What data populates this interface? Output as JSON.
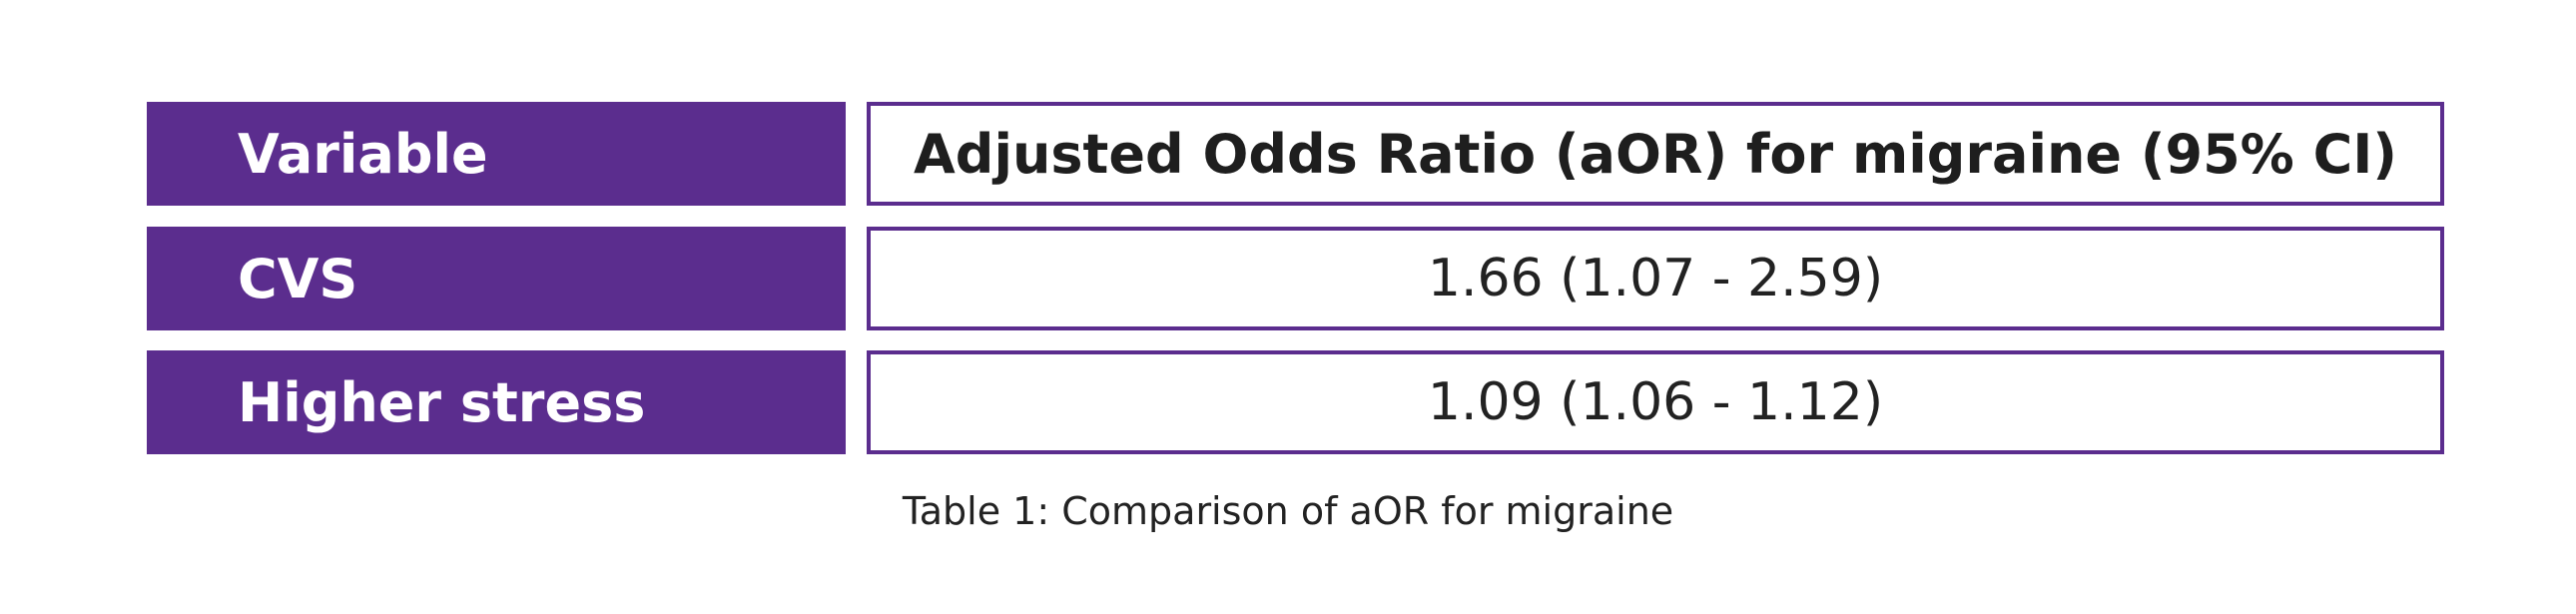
{
  "colors": {
    "accent": "#5b2d8e",
    "label_text": "#ffffff",
    "body_text": "#222222",
    "background": "#ffffff"
  },
  "table": {
    "header": {
      "variable": "Variable",
      "value": "Adjusted Odds Ratio (aOR) for migraine (95% CI)"
    },
    "rows": [
      {
        "variable": "CVS",
        "value": "1.66 (1.07 - 2.59)"
      },
      {
        "variable": "Higher stress",
        "value": "1.09 (1.06 - 1.12)"
      }
    ]
  },
  "caption": "Table 1: Comparison of aOR for migraine"
}
